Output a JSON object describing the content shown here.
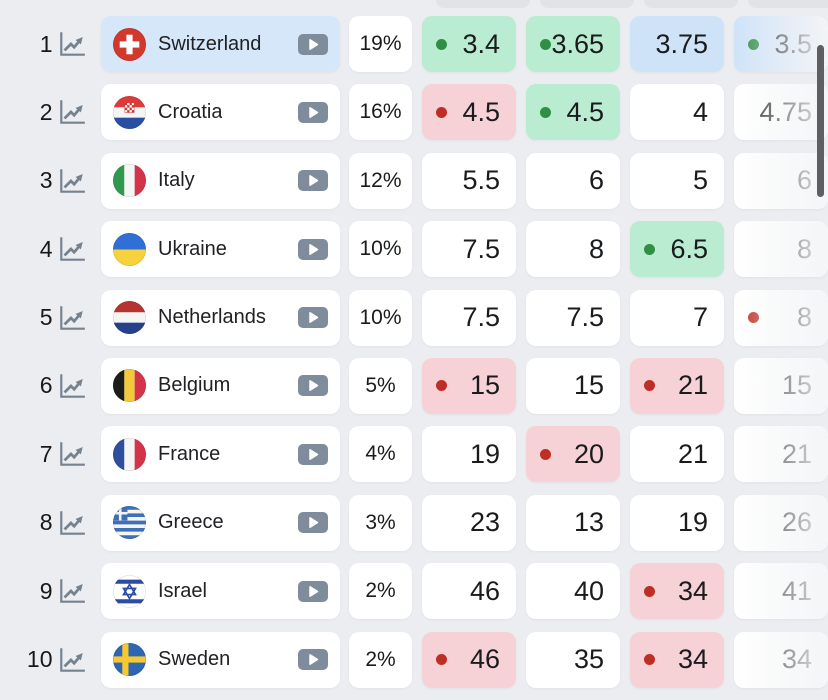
{
  "table": {
    "rows": [
      {
        "rank": "1",
        "country": "Switzerland",
        "flag": "ch",
        "percent": "19%",
        "highlight": true,
        "cells": [
          {
            "value": "3.4",
            "bg": "green",
            "dot": "green"
          },
          {
            "value": "3.65",
            "bg": "green",
            "dot": "green"
          },
          {
            "value": "3.75",
            "bg": "blue",
            "dot": null
          },
          {
            "value": "3.5",
            "bg": "blue",
            "dot": "green"
          }
        ]
      },
      {
        "rank": "2",
        "country": "Croatia",
        "flag": "hr",
        "percent": "16%",
        "highlight": false,
        "cells": [
          {
            "value": "4.5",
            "bg": "red",
            "dot": "red"
          },
          {
            "value": "4.5",
            "bg": "green",
            "dot": "green"
          },
          {
            "value": "4",
            "bg": "white",
            "dot": null
          },
          {
            "value": "4.75",
            "bg": "white",
            "dot": null
          }
        ]
      },
      {
        "rank": "3",
        "country": "Italy",
        "flag": "it",
        "percent": "12%",
        "highlight": false,
        "cells": [
          {
            "value": "5.5",
            "bg": "white",
            "dot": null
          },
          {
            "value": "6",
            "bg": "white",
            "dot": null
          },
          {
            "value": "5",
            "bg": "white",
            "dot": null
          },
          {
            "value": "6",
            "bg": "white",
            "dot": null
          }
        ]
      },
      {
        "rank": "4",
        "country": "Ukraine",
        "flag": "ua",
        "percent": "10%",
        "highlight": false,
        "cells": [
          {
            "value": "7.5",
            "bg": "white",
            "dot": null
          },
          {
            "value": "8",
            "bg": "white",
            "dot": null
          },
          {
            "value": "6.5",
            "bg": "green",
            "dot": "green"
          },
          {
            "value": "8",
            "bg": "white",
            "dot": null
          }
        ]
      },
      {
        "rank": "5",
        "country": "Netherlands",
        "flag": "nl",
        "percent": "10%",
        "highlight": false,
        "cells": [
          {
            "value": "7.5",
            "bg": "white",
            "dot": null
          },
          {
            "value": "7.5",
            "bg": "white",
            "dot": null
          },
          {
            "value": "7",
            "bg": "white",
            "dot": null
          },
          {
            "value": "8",
            "bg": "white",
            "dot": "red"
          }
        ]
      },
      {
        "rank": "6",
        "country": "Belgium",
        "flag": "be",
        "percent": "5%",
        "highlight": false,
        "cells": [
          {
            "value": "15",
            "bg": "red",
            "dot": "red"
          },
          {
            "value": "15",
            "bg": "white",
            "dot": null
          },
          {
            "value": "21",
            "bg": "red",
            "dot": "red"
          },
          {
            "value": "15",
            "bg": "white",
            "dot": null
          }
        ]
      },
      {
        "rank": "7",
        "country": "France",
        "flag": "fr",
        "percent": "4%",
        "highlight": false,
        "cells": [
          {
            "value": "19",
            "bg": "white",
            "dot": null
          },
          {
            "value": "20",
            "bg": "red",
            "dot": "red"
          },
          {
            "value": "21",
            "bg": "white",
            "dot": null
          },
          {
            "value": "21",
            "bg": "white",
            "dot": null
          }
        ]
      },
      {
        "rank": "8",
        "country": "Greece",
        "flag": "gr",
        "percent": "3%",
        "highlight": false,
        "cells": [
          {
            "value": "23",
            "bg": "white",
            "dot": null
          },
          {
            "value": "13",
            "bg": "white",
            "dot": null
          },
          {
            "value": "19",
            "bg": "white",
            "dot": null
          },
          {
            "value": "26",
            "bg": "white",
            "dot": null
          }
        ]
      },
      {
        "rank": "9",
        "country": "Israel",
        "flag": "il",
        "percent": "2%",
        "highlight": false,
        "cells": [
          {
            "value": "46",
            "bg": "white",
            "dot": null
          },
          {
            "value": "40",
            "bg": "white",
            "dot": null
          },
          {
            "value": "34",
            "bg": "red",
            "dot": "red"
          },
          {
            "value": "41",
            "bg": "white",
            "dot": null
          }
        ]
      },
      {
        "rank": "10",
        "country": "Sweden",
        "flag": "se",
        "percent": "2%",
        "highlight": false,
        "cells": [
          {
            "value": "46",
            "bg": "red",
            "dot": "red"
          },
          {
            "value": "35",
            "bg": "white",
            "dot": null
          },
          {
            "value": "34",
            "bg": "red",
            "dot": "red"
          },
          {
            "value": "34",
            "bg": "white",
            "dot": null
          }
        ]
      }
    ]
  },
  "icons": {
    "trend": "line-chart-trend-icon",
    "play": "play-video-icon"
  },
  "colors": {
    "page_bg": "#ebedf0",
    "card_bg": "#ffffff",
    "highlight_row_bg": "#d6e7f9",
    "green_bg": "#b9ecd0",
    "green_dot": "#2f8f45",
    "red_bg": "#f6d2d6",
    "red_dot": "#bf2e25",
    "blue_bg": "#cfe3f8",
    "text": "#191b1d",
    "icon_gray": "#75828f",
    "play_button": "#7e8c9b",
    "header_strip": "#e1e3e6",
    "scrollbar": "#5c6063"
  }
}
